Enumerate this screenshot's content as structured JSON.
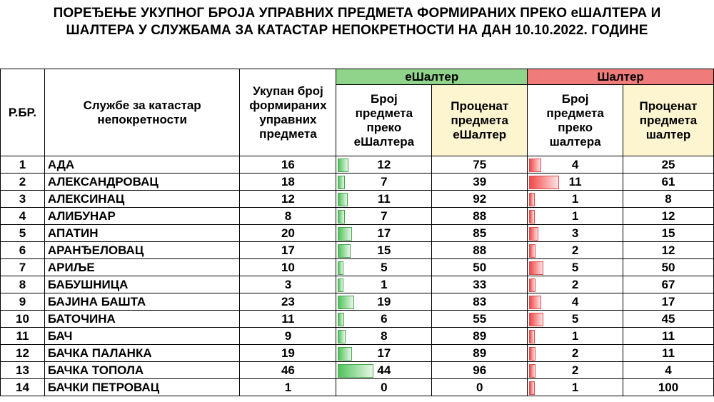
{
  "title_line1": "ПОРЕЂЕЊЕ УКУПНОГ БРОЈА УПРАВНИХ ПРЕДМЕТА ФОРМИРАНИХ ПРЕКО еШАЛТЕРА И",
  "title_line2": "ШАЛТЕРА У СЛУЖБАМА ЗА КАТАСТАР НЕПОКРЕТНОСТИ НА ДАН 10.10.2022. ГОДИНЕ",
  "header": {
    "rbr": "Р.БР.",
    "office": "Службе за катастар непокретности",
    "total": "Укупан број формираних управних предмета",
    "eshalter_group": "еШалтер",
    "eshalter_count": "Број предмета преко еШалтера",
    "eshalter_pct": "Проценат предмета еШалтер",
    "shalter_group": "Шалтер",
    "shalter_count": "Број предмета преко шалтера",
    "shalter_pct": "Проценат предмета шалтер"
  },
  "colors": {
    "eshalter_header": "#8fd48a",
    "shalter_header": "#f07b7b",
    "pct_header_bg": "#fdf5d0",
    "bar_green": "#4fc35b",
    "bar_red": "#f24848"
  },
  "rows": [
    {
      "rbr": "1",
      "office": "АДА",
      "total": "16",
      "e_count": "12",
      "e_pct": "75",
      "s_count": "4",
      "s_pct": "25"
    },
    {
      "rbr": "2",
      "office": "АЛЕКСАНДРОВАЦ",
      "total": "18",
      "e_count": "7",
      "e_pct": "39",
      "s_count": "11",
      "s_pct": "61"
    },
    {
      "rbr": "3",
      "office": "АЛЕКСИНАЦ",
      "total": "12",
      "e_count": "11",
      "e_pct": "92",
      "s_count": "1",
      "s_pct": "8"
    },
    {
      "rbr": "4",
      "office": "АЛИБУНАР",
      "total": "8",
      "e_count": "7",
      "e_pct": "88",
      "s_count": "1",
      "s_pct": "12"
    },
    {
      "rbr": "5",
      "office": "АПАТИН",
      "total": "20",
      "e_count": "17",
      "e_pct": "85",
      "s_count": "3",
      "s_pct": "15"
    },
    {
      "rbr": "6",
      "office": "АРАНЂЕЛОВАЦ",
      "total": "17",
      "e_count": "15",
      "e_pct": "88",
      "s_count": "2",
      "s_pct": "12"
    },
    {
      "rbr": "7",
      "office": "АРИЉЕ",
      "total": "10",
      "e_count": "5",
      "e_pct": "50",
      "s_count": "5",
      "s_pct": "50"
    },
    {
      "rbr": "8",
      "office": "БАБУШНИЦА",
      "total": "3",
      "e_count": "1",
      "e_pct": "33",
      "s_count": "2",
      "s_pct": "67"
    },
    {
      "rbr": "9",
      "office": "БАЈИНА БАШТА",
      "total": "23",
      "e_count": "19",
      "e_pct": "83",
      "s_count": "4",
      "s_pct": "17"
    },
    {
      "rbr": "10",
      "office": "БАТОЧИНА",
      "total": "11",
      "e_count": "6",
      "e_pct": "55",
      "s_count": "5",
      "s_pct": "45"
    },
    {
      "rbr": "11",
      "office": "БАЧ",
      "total": "9",
      "e_count": "8",
      "e_pct": "89",
      "s_count": "1",
      "s_pct": "11"
    },
    {
      "rbr": "12",
      "office": "БАЧКА ПАЛАНКА",
      "total": "19",
      "e_count": "17",
      "e_pct": "89",
      "s_count": "2",
      "s_pct": "11"
    },
    {
      "rbr": "13",
      "office": "БАЧКА ТОПОЛА",
      "total": "46",
      "e_count": "44",
      "e_pct": "96",
      "s_count": "2",
      "s_pct": "4"
    },
    {
      "rbr": "14",
      "office": "БАЧКИ ПЕТРОВАЦ",
      "total": "1",
      "e_count": "0",
      "e_pct": "0",
      "s_count": "1",
      "s_pct": "100"
    }
  ]
}
